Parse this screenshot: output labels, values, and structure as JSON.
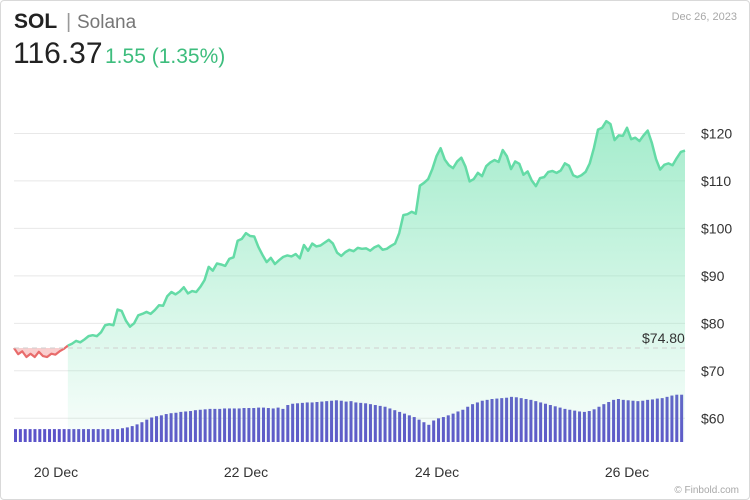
{
  "header": {
    "symbol": "SOL",
    "separator": "|",
    "name": "Solana",
    "price": "116.37",
    "change": "1.55 (1.35%)",
    "date": "Dec 26, 2023"
  },
  "credit": "© Finbold.com",
  "colors": {
    "up_line": "#64dba6",
    "up_fill_top": "#86e6bb",
    "down_line": "#e86b6b",
    "down_fill": "#f7c2c2",
    "volume": "#5b53c9",
    "grid": "#e8e8e8",
    "change_text": "#3dbd7d"
  },
  "chart_data": {
    "type": "area",
    "x_tick_labels": [
      "20 Dec",
      "22 Dec",
      "24 Dec",
      "26 Dec"
    ],
    "y_tick_labels": [
      "$60",
      "$70",
      "$80",
      "$90",
      "$100",
      "$110",
      "$120"
    ],
    "ylim": [
      55,
      130
    ],
    "reference_line": {
      "label": "$74.80",
      "value": 74.8
    },
    "grid": true,
    "series": [
      {
        "values": [
          74.8,
          73.5,
          74.1,
          72.9,
          73.6,
          72.9,
          74.0,
          73.1,
          72.9,
          73.6,
          73.4,
          74.1,
          74.6,
          75.3,
          75.7,
          76.3,
          76.0,
          76.6,
          77.3,
          77.5,
          77.3,
          78.1,
          79.6,
          79.8,
          79.6,
          82.9,
          82.6,
          80.6,
          79.3,
          80.0,
          81.7,
          82.0,
          82.4,
          82.0,
          82.8,
          83.8,
          83.7,
          85.7,
          86.6,
          86.1,
          86.7,
          87.6,
          86.3,
          86.8,
          86.6,
          87.7,
          89.1,
          91.9,
          91.1,
          92.6,
          92.4,
          92.1,
          93.6,
          93.9,
          97.4,
          97.8,
          99.0,
          98.4,
          98.3,
          96.1,
          94.4,
          92.9,
          93.8,
          92.5,
          93.3,
          94.0,
          94.3,
          94.1,
          94.6,
          93.7,
          96.5,
          95.3,
          96.8,
          96.2,
          96.4,
          97.0,
          97.6,
          96.8,
          94.9,
          94.2,
          95.0,
          95.5,
          95.2,
          95.9,
          95.7,
          95.8,
          95.3,
          96.0,
          96.4,
          95.5,
          95.7,
          96.3,
          96.8,
          99.0,
          102.8,
          103.0,
          103.5,
          103.1,
          109.0,
          109.6,
          110.4,
          112.5,
          115.2,
          116.9,
          114.5,
          113.3,
          112.7,
          114.1,
          114.9,
          113.0,
          109.9,
          110.4,
          111.7,
          111.0,
          113.1,
          113.9,
          114.4,
          114.0,
          116.5,
          115.2,
          112.5,
          114.1,
          113.6,
          111.3,
          112.0,
          110.1,
          108.9,
          110.6,
          110.8,
          111.9,
          112.1,
          111.7,
          112.2,
          113.7,
          113.2,
          111.2,
          110.8,
          111.2,
          111.9,
          113.7,
          116.9,
          120.8,
          121.2,
          122.6,
          122.0,
          118.6,
          119.6,
          119.5,
          121.2,
          118.8,
          119.1,
          118.4,
          119.6,
          120.6,
          118.0,
          114.6,
          112.4,
          113.4,
          113.7,
          113.3,
          114.8,
          116.1,
          116.4
        ]
      }
    ],
    "volume": {
      "values": [
        0.3,
        0.3,
        0.3,
        0.3,
        0.3,
        0.3,
        0.3,
        0.3,
        0.3,
        0.3,
        0.3,
        0.3,
        0.3,
        0.3,
        0.3,
        0.3,
        0.3,
        0.3,
        0.3,
        0.3,
        0.3,
        0.3,
        0.32,
        0.34,
        0.37,
        0.41,
        0.46,
        0.52,
        0.57,
        0.6,
        0.62,
        0.65,
        0.67,
        0.68,
        0.7,
        0.71,
        0.72,
        0.74,
        0.75,
        0.76,
        0.77,
        0.77,
        0.77,
        0.78,
        0.78,
        0.78,
        0.78,
        0.79,
        0.79,
        0.79,
        0.8,
        0.8,
        0.79,
        0.78,
        0.8,
        0.77,
        0.86,
        0.89,
        0.9,
        0.91,
        0.92,
        0.92,
        0.93,
        0.94,
        0.95,
        0.96,
        0.97,
        0.96,
        0.94,
        0.95,
        0.92,
        0.91,
        0.9,
        0.88,
        0.86,
        0.84,
        0.82,
        0.78,
        0.74,
        0.7,
        0.66,
        0.62,
        0.58,
        0.52,
        0.46,
        0.4,
        0.5,
        0.55,
        0.58,
        0.62,
        0.66,
        0.71,
        0.75,
        0.82,
        0.88,
        0.92,
        0.96,
        0.98,
        1.0,
        1.01,
        1.02,
        1.03,
        1.05,
        1.04,
        1.02,
        1.0,
        0.98,
        0.95,
        0.92,
        0.89,
        0.86,
        0.83,
        0.8,
        0.77,
        0.75,
        0.73,
        0.71,
        0.7,
        0.72,
        0.76,
        0.82,
        0.88,
        0.93,
        0.98,
        1.0,
        0.98,
        0.97,
        0.96,
        0.95,
        0.96,
        0.98,
        0.99,
        1.01,
        1.02,
        1.05,
        1.08,
        1.1,
        1.1
      ]
    }
  }
}
